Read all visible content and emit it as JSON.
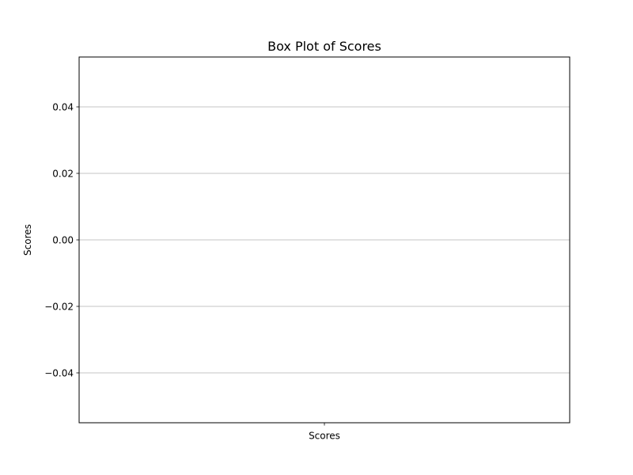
{
  "chart_data": {
    "type": "box",
    "title": "Box Plot of Scores",
    "xlabel": "",
    "ylabel": "Scores",
    "categories": [
      "Scores"
    ],
    "series": [
      {
        "values": []
      }
    ],
    "ylim": [
      -0.055,
      0.055
    ],
    "yticks": [
      -0.04,
      -0.02,
      0.0,
      0.02,
      0.04
    ],
    "ytick_labels": [
      "−0.04",
      "−0.02",
      "0.00",
      "0.02",
      "0.04"
    ],
    "grid": {
      "y": true,
      "x": false
    },
    "colors": {
      "grid": "#b0b0b0",
      "axes": "#000000",
      "background": "#ffffff"
    }
  }
}
